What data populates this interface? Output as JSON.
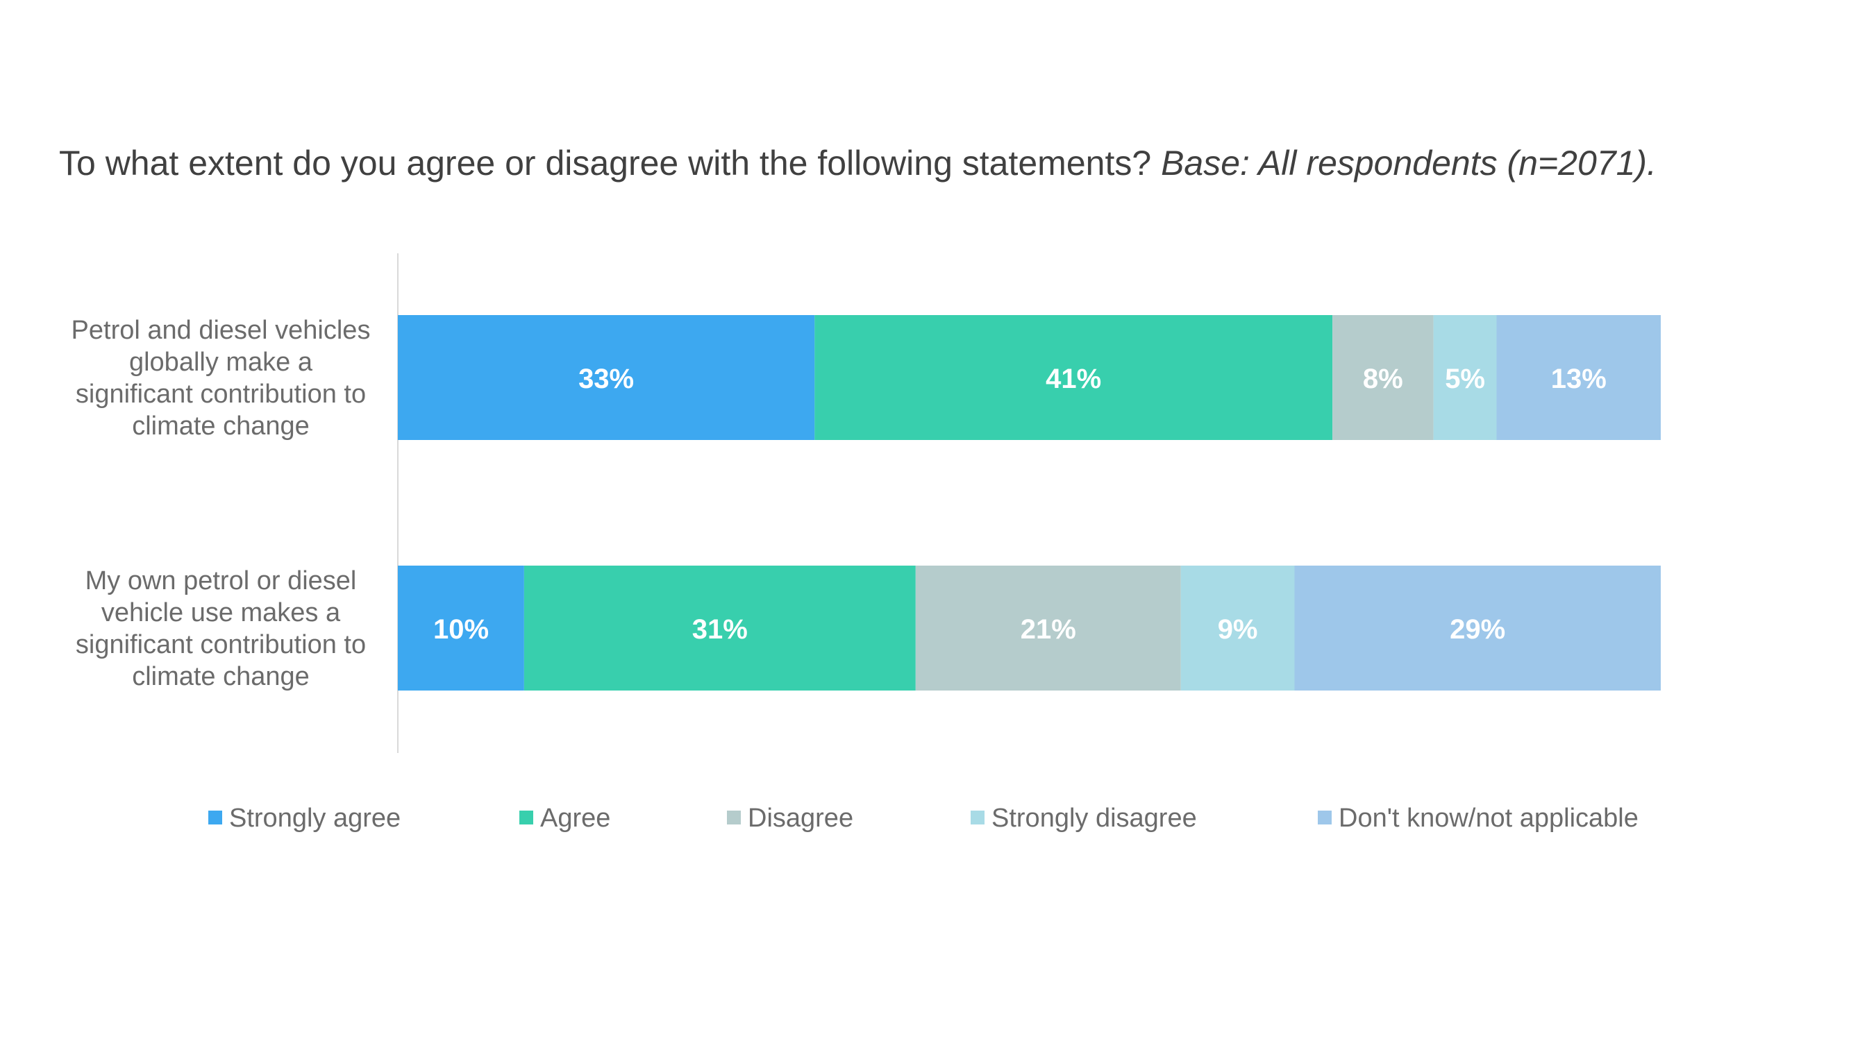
{
  "chart_data": {
    "type": "bar",
    "orientation": "horizontal",
    "stacked": true,
    "title": "To what extent do you agree or disagree with the following statements?",
    "subtitle": "Base: All respondents (n=2071).",
    "categories": [
      [
        "Petrol and diesel vehicles",
        "globally make a",
        "significant contribution to",
        "climate change"
      ],
      [
        "My own petrol or diesel",
        "vehicle use makes a",
        "significant contribution to",
        "climate change"
      ]
    ],
    "series": [
      {
        "name": "Strongly agree",
        "color": "#3da8f0",
        "values": [
          33,
          10
        ],
        "labels": [
          "33%",
          "10%"
        ]
      },
      {
        "name": "Agree",
        "color": "#38cfad",
        "values": [
          41,
          31
        ],
        "labels": [
          "41%",
          "31%"
        ]
      },
      {
        "name": "Disagree",
        "color": "#b5cccc",
        "values": [
          8,
          21
        ],
        "labels": [
          "8%",
          "21%"
        ]
      },
      {
        "name": "Strongly disagree",
        "color": "#a8dbe6",
        "values": [
          5,
          9
        ],
        "labels": [
          "5%",
          "9%"
        ]
      },
      {
        "name": "Don't know/not applicable",
        "color": "#9ec7ea",
        "values": [
          13,
          29
        ],
        "labels": [
          "13%",
          "29%"
        ]
      }
    ],
    "xlim": [
      0,
      100
    ],
    "grid": false,
    "legend_position": "bottom"
  }
}
